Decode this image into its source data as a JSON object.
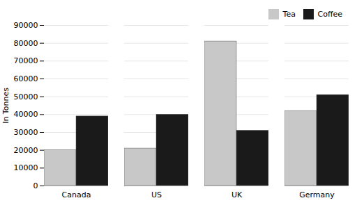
{
  "chart_data": {
    "type": "bar",
    "ylabel": "In Tonnes",
    "categories": [
      "Canada",
      "US",
      "UK",
      "Germany"
    ],
    "series": [
      {
        "name": "Tea",
        "color": "#c8c8c8",
        "values": [
          20000,
          21000,
          81000,
          42000
        ]
      },
      {
        "name": "Coffee",
        "color": "#1a1a1a",
        "values": [
          39000,
          40000,
          31000,
          51000
        ]
      }
    ],
    "ylim": [
      0,
      90000
    ],
    "yticks": [
      0,
      10000,
      20000,
      30000,
      40000,
      50000,
      60000,
      70000,
      80000,
      90000
    ],
    "grid": true,
    "legend": "upper right"
  }
}
